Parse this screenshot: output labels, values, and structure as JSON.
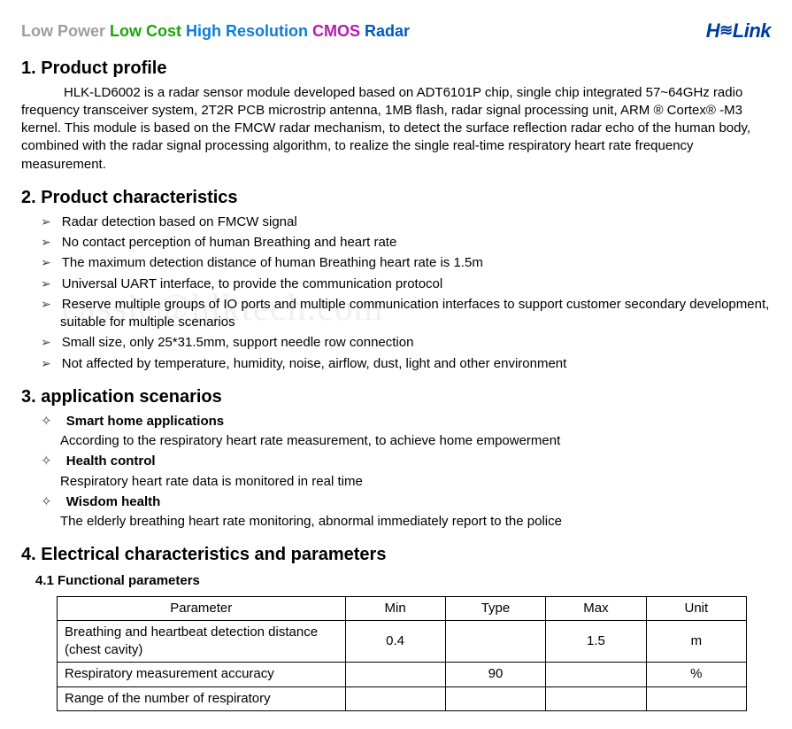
{
  "header": {
    "tagline_parts": [
      {
        "text": "Low Power ",
        "color": "#9e9e9e"
      },
      {
        "text": "Low Cost ",
        "color": "#1aa50a"
      },
      {
        "text": "High Resolution ",
        "color": "#0b7dd6"
      },
      {
        "text": "CMOS ",
        "color": "#b51ab0"
      },
      {
        "text": "Radar",
        "color": "#005bbb"
      }
    ],
    "logo_text": "Hi-Link"
  },
  "watermark": "cassie@hlktech.com",
  "sections": {
    "profile": {
      "title": "1. Product profile",
      "body": "HLK-LD6002 is a radar sensor module developed based on ADT6101P chip, single chip integrated 57~64GHz radio frequency transceiver system, 2T2R PCB microstrip antenna, 1MB flash, radar signal processing unit, ARM ® Cortex® -M3 kernel. This module is based on the FMCW radar mechanism, to detect the surface reflection radar echo of the human body, combined with the radar signal processing algorithm, to realize the single real-time respiratory heart rate frequency measurement."
    },
    "characteristics": {
      "title": "2. Product characteristics",
      "items": [
        "Radar detection based on FMCW signal",
        "No contact perception of human Breathing and heart rate",
        "The maximum detection distance of human Breathing heart rate is 1.5m",
        "Universal UART interface, to provide the communication protocol",
        "Reserve multiple groups of IO ports and multiple communication interfaces to support customer secondary development, suitable for multiple scenarios",
        "Small size, only 25*31.5mm, support needle row connection",
        "Not affected by temperature, humidity, noise, airflow, dust, light and other environment"
      ]
    },
    "applications": {
      "title": "3. application scenarios",
      "items": [
        {
          "title": "Smart home applications",
          "desc": "According to the respiratory heart rate measurement, to achieve home empowerment"
        },
        {
          "title": "Health control",
          "desc": "Respiratory heart rate data is monitored in real time"
        },
        {
          "title": "Wisdom health",
          "desc": "The elderly breathing heart rate monitoring, abnormal immediately report to the police"
        }
      ]
    },
    "electrical": {
      "title": "4. Electrical characteristics and parameters",
      "subhead": "4.1 Functional parameters",
      "table": {
        "columns": [
          "Parameter",
          "Min",
          "Type",
          "Max",
          "Unit"
        ],
        "rows": [
          {
            "param": "Breathing and heartbeat detection distance (chest cavity)",
            "min": "0.4",
            "type": "",
            "max": "1.5",
            "unit": "m"
          },
          {
            "param": "Respiratory measurement accuracy",
            "min": "",
            "type": "90",
            "max": "",
            "unit": "%"
          },
          {
            "param": "Range of the number of respiratory",
            "min": "",
            "type": "",
            "max": "",
            "unit": ""
          }
        ]
      }
    }
  }
}
